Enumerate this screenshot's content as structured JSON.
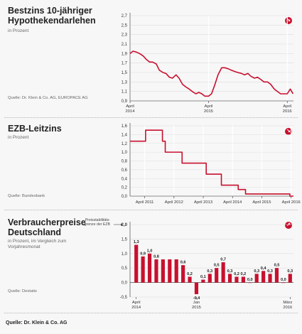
{
  "panels": {
    "p1": {
      "title": "Bestzins 10-jähriger Hypothekendarlehen",
      "subtitle": "in Prozent",
      "source": "Quelle: Dr. Klein & Co. AG, EUROPACE AG",
      "badge_icon": "arrow-down-right-icon"
    },
    "p2": {
      "title": "EZB-Leitzins",
      "subtitle": "in Prozent",
      "source": "Quelle: Bundesbank",
      "badge_icon": "arrow-down-right-icon"
    },
    "p3": {
      "title": "Verbraucherpreise Deutschland",
      "subtitle": "in Prozent, im Vergleich zum Vorjahresmonat",
      "source": "Quelle: Destatis",
      "note": "Preisstabilitäts-grenze der EZB",
      "badge_icon": "arrow-up-right-icon"
    }
  },
  "footer": "Quelle: Dr. Klein & Co. AG",
  "colors": {
    "series": "#c8102e",
    "grid": "#dcdcdc",
    "axis": "#333333",
    "badge": "#c8102e",
    "background": "#f7f7f7"
  },
  "chart_data": [
    {
      "type": "line",
      "title": "Bestzins 10-jähriger Hypothekendarlehen",
      "ylabel": "in Prozent",
      "ylim": [
        0.9,
        2.7
      ],
      "yticks": [
        0.9,
        1.1,
        1.3,
        1.5,
        1.7,
        1.9,
        2.1,
        2.3,
        2.5,
        2.7
      ],
      "ytick_labels": [
        "0,9",
        "1,1",
        "1,3",
        "1,5",
        "1,7",
        "1,9",
        "2,1",
        "2,3",
        "2,5",
        "2,7"
      ],
      "xlim": [
        "2014-04-01",
        "2016-04-30"
      ],
      "xticks": [
        {
          "x": "2014-04-01",
          "label": "April 2014"
        },
        {
          "x": "2015-04-01",
          "label": "April 2015"
        },
        {
          "x": "2016-04-01",
          "label": "April 2016"
        }
      ],
      "x": [
        "2014-04-01",
        "2014-04-15",
        "2014-05-01",
        "2014-05-15",
        "2014-06-01",
        "2014-06-15",
        "2014-07-01",
        "2014-07-15",
        "2014-08-01",
        "2014-08-15",
        "2014-09-01",
        "2014-09-15",
        "2014-10-01",
        "2014-10-15",
        "2014-11-01",
        "2014-11-15",
        "2014-12-01",
        "2014-12-15",
        "2015-01-01",
        "2015-01-15",
        "2015-02-01",
        "2015-02-15",
        "2015-03-01",
        "2015-03-15",
        "2015-04-01",
        "2015-04-15",
        "2015-05-01",
        "2015-05-15",
        "2015-06-01",
        "2015-06-15",
        "2015-07-01",
        "2015-07-15",
        "2015-08-01",
        "2015-08-15",
        "2015-09-01",
        "2015-09-15",
        "2015-10-01",
        "2015-10-15",
        "2015-11-01",
        "2015-11-15",
        "2015-12-01",
        "2015-12-15",
        "2016-01-01",
        "2016-01-15",
        "2016-02-01",
        "2016-02-15",
        "2016-03-01",
        "2016-03-15",
        "2016-04-01",
        "2016-04-15",
        "2016-04-28"
      ],
      "series": [
        {
          "values": [
            1.9,
            1.95,
            1.93,
            1.9,
            1.85,
            1.78,
            1.72,
            1.72,
            1.68,
            1.55,
            1.5,
            1.48,
            1.4,
            1.38,
            1.45,
            1.38,
            1.25,
            1.2,
            1.15,
            1.1,
            1.05,
            1.08,
            1.05,
            1.0,
            1.0,
            1.05,
            1.25,
            1.45,
            1.6,
            1.6,
            1.58,
            1.55,
            1.52,
            1.5,
            1.48,
            1.45,
            1.48,
            1.42,
            1.38,
            1.4,
            1.35,
            1.3,
            1.3,
            1.25,
            1.15,
            1.1,
            1.05,
            1.05,
            1.05,
            1.15,
            1.05
          ]
        }
      ]
    },
    {
      "type": "line",
      "title": "EZB-Leitzins",
      "ylabel": "in Prozent",
      "ylim": [
        0.0,
        1.6
      ],
      "yticks": [
        0.0,
        0.2,
        0.4,
        0.6,
        0.8,
        1.0,
        1.2,
        1.4,
        1.6
      ],
      "ytick_labels": [
        "0,0",
        "0,2",
        "0,4",
        "0,6",
        "0,8",
        "1,0",
        "1,2",
        "1,4",
        "1,6"
      ],
      "xlim": [
        "2010-10-01",
        "2016-04-30"
      ],
      "xticks": [
        {
          "x": "2011-04-01",
          "label": "April 2011"
        },
        {
          "x": "2012-04-01",
          "label": "April 2012"
        },
        {
          "x": "2013-04-01",
          "label": "April 2013"
        },
        {
          "x": "2014-04-01",
          "label": "April 2014"
        },
        {
          "x": "2015-04-01",
          "label": "April 2015"
        },
        {
          "x": "2016-04-01",
          "label": "April 2016"
        }
      ],
      "step": true,
      "x": [
        "2010-10-01",
        "2011-04-13",
        "2011-07-13",
        "2011-11-09",
        "2011-12-14",
        "2012-07-11",
        "2013-05-08",
        "2013-11-13",
        "2014-06-11",
        "2014-09-10",
        "2016-03-16",
        "2016-04-30"
      ],
      "series": [
        {
          "values": [
            1.25,
            1.5,
            1.5,
            1.25,
            1.0,
            0.75,
            0.5,
            0.25,
            0.15,
            0.05,
            0.0,
            0.0
          ]
        }
      ]
    },
    {
      "type": "bar",
      "title": "Verbraucherpreise Deutschland",
      "ylabel": "in Prozent, im Vergleich zum Vorjahresmonat",
      "ylim": [
        -0.5,
        2.0
      ],
      "yticks": [
        -0.5,
        0.0,
        0.5,
        1.0,
        1.5,
        2.0
      ],
      "ytick_labels": [
        "-0,5",
        "0,0",
        "0,5",
        "1,0",
        "1,5",
        "2,0"
      ],
      "reference_line": {
        "y": 2.0,
        "label": "Preisstabilitäts-grenze der EZB"
      },
      "categories": [
        "Apr 2014",
        "Mai 2014",
        "Jun 2014",
        "Jul 2014",
        "Aug 2014",
        "Sep 2014",
        "Okt 2014",
        "Nov 2014",
        "Dez 2014",
        "Jan 2015",
        "Feb 2015",
        "Mär 2015",
        "Apr 2015",
        "Mai 2015",
        "Jun 2015",
        "Jul 2015",
        "Aug 2015",
        "Sep 2015",
        "Okt 2015",
        "Nov 2015",
        "Dez 2015",
        "Jan 2016",
        "Feb 2016",
        "Mär 2016"
      ],
      "xticks": [
        {
          "index": 0,
          "label": "April 2014"
        },
        {
          "index": 9,
          "label": "Jan 2015"
        },
        {
          "index": 23,
          "label": "März 2016"
        }
      ],
      "values": [
        1.3,
        0.9,
        1.0,
        0.8,
        0.8,
        0.8,
        0.8,
        0.6,
        0.2,
        -0.4,
        0.1,
        0.3,
        0.5,
        0.7,
        0.3,
        0.2,
        0.2,
        0.0,
        0.3,
        0.4,
        0.3,
        0.5,
        0.0,
        0.3
      ],
      "value_labels": [
        "1,3",
        "0,9",
        "1,0",
        "0,8",
        "",
        "",
        "",
        "0,6",
        "0,2",
        "-0,4",
        "0,1",
        "0,3",
        "0,5",
        "0,7",
        "0,3",
        "0,2",
        "0,2",
        "0,0",
        "0,3",
        "0,4",
        "0,3",
        "0,5",
        "0,0",
        "0,3"
      ]
    }
  ]
}
